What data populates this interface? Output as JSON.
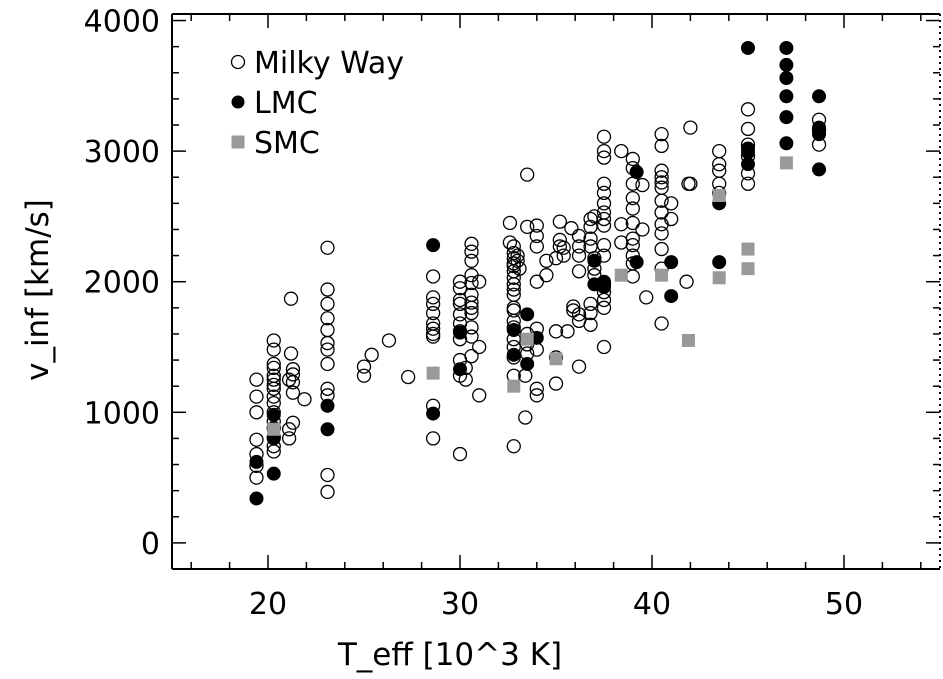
{
  "chart_data": {
    "type": "scatter",
    "title": "",
    "xlabel": "T_eff [10^3 K]",
    "ylabel": "v_inf [km/s]",
    "xlim": [
      15,
      55
    ],
    "ylim": [
      -200,
      4050
    ],
    "xticks": [
      20,
      30,
      40,
      50
    ],
    "yticks": [
      0,
      1000,
      2000,
      3000,
      4000
    ],
    "grid": false,
    "legend_position": "top-left",
    "series": [
      {
        "name": "Milky Way",
        "marker": "open-circle",
        "color": "#000000",
        "points": [
          [
            19.4,
            1250
          ],
          [
            19.4,
            1120
          ],
          [
            19.4,
            1000
          ],
          [
            19.4,
            790
          ],
          [
            19.4,
            680
          ],
          [
            19.4,
            590
          ],
          [
            19.4,
            500
          ],
          [
            20.3,
            1550
          ],
          [
            20.3,
            1480
          ],
          [
            20.3,
            1370
          ],
          [
            20.3,
            1340
          ],
          [
            20.3,
            1280
          ],
          [
            20.3,
            1250
          ],
          [
            20.3,
            1210
          ],
          [
            20.3,
            1180
          ],
          [
            20.3,
            1120
          ],
          [
            20.3,
            1070
          ],
          [
            20.3,
            1000
          ],
          [
            20.3,
            930
          ],
          [
            20.3,
            880
          ],
          [
            20.3,
            810
          ],
          [
            20.3,
            740
          ],
          [
            20.3,
            700
          ],
          [
            21.1,
            870
          ],
          [
            21.1,
            800
          ],
          [
            21.1,
            1250
          ],
          [
            21.2,
            1870
          ],
          [
            21.2,
            1450
          ],
          [
            21.3,
            1330
          ],
          [
            21.3,
            1290
          ],
          [
            21.3,
            1230
          ],
          [
            21.3,
            1150
          ],
          [
            21.3,
            920
          ],
          [
            21.9,
            1100
          ],
          [
            23.1,
            2260
          ],
          [
            23.1,
            1940
          ],
          [
            23.1,
            1830
          ],
          [
            23.1,
            1720
          ],
          [
            23.1,
            1630
          ],
          [
            23.1,
            1530
          ],
          [
            23.1,
            1480
          ],
          [
            23.1,
            1370
          ],
          [
            23.1,
            1180
          ],
          [
            23.1,
            1130
          ],
          [
            23.1,
            520
          ],
          [
            23.1,
            390
          ],
          [
            25.0,
            1350
          ],
          [
            25.0,
            1280
          ],
          [
            25.4,
            1440
          ],
          [
            26.3,
            1550
          ],
          [
            27.3,
            1270
          ],
          [
            28.6,
            2040
          ],
          [
            28.6,
            1880
          ],
          [
            28.6,
            1830
          ],
          [
            28.6,
            1760
          ],
          [
            28.6,
            1680
          ],
          [
            28.6,
            1640
          ],
          [
            28.6,
            1600
          ],
          [
            28.6,
            1580
          ],
          [
            28.6,
            1050
          ],
          [
            28.6,
            800
          ],
          [
            30.0,
            2000
          ],
          [
            30.0,
            1950
          ],
          [
            30.0,
            1860
          ],
          [
            30.0,
            1830
          ],
          [
            30.0,
            1750
          ],
          [
            30.0,
            1680
          ],
          [
            30.0,
            1620
          ],
          [
            30.0,
            1560
          ],
          [
            30.0,
            1400
          ],
          [
            30.0,
            1280
          ],
          [
            30.0,
            680
          ],
          [
            30.3,
            1340
          ],
          [
            30.3,
            1250
          ],
          [
            30.6,
            2290
          ],
          [
            30.6,
            2230
          ],
          [
            30.6,
            2160
          ],
          [
            30.6,
            2050
          ],
          [
            30.6,
            1990
          ],
          [
            30.6,
            1900
          ],
          [
            30.6,
            1840
          ],
          [
            30.6,
            1800
          ],
          [
            30.6,
            1760
          ],
          [
            30.6,
            1650
          ],
          [
            30.6,
            1580
          ],
          [
            30.6,
            1430
          ],
          [
            31.0,
            2000
          ],
          [
            31.0,
            1500
          ],
          [
            31.0,
            1130
          ],
          [
            32.6,
            2450
          ],
          [
            32.6,
            2300
          ],
          [
            32.8,
            2270
          ],
          [
            32.8,
            2220
          ],
          [
            32.8,
            2180
          ],
          [
            32.8,
            2140
          ],
          [
            32.8,
            2120
          ],
          [
            32.8,
            2080
          ],
          [
            32.8,
            2030
          ],
          [
            32.8,
            1980
          ],
          [
            32.8,
            1940
          ],
          [
            32.8,
            1900
          ],
          [
            32.8,
            1800
          ],
          [
            32.8,
            1780
          ],
          [
            32.8,
            1700
          ],
          [
            32.8,
            1650
          ],
          [
            32.8,
            1560
          ],
          [
            32.8,
            1500
          ],
          [
            32.8,
            1420
          ],
          [
            32.8,
            1280
          ],
          [
            32.8,
            740
          ],
          [
            33.0,
            2200
          ],
          [
            33.0,
            2160
          ],
          [
            33.1,
            2100
          ],
          [
            33.5,
            2820
          ],
          [
            33.5,
            2420
          ],
          [
            33.5,
            1600
          ],
          [
            33.5,
            1520
          ],
          [
            33.5,
            1450
          ],
          [
            33.4,
            1280
          ],
          [
            33.4,
            960
          ],
          [
            34.0,
            2430
          ],
          [
            34.0,
            2350
          ],
          [
            34.0,
            2270
          ],
          [
            34.0,
            2000
          ],
          [
            34.0,
            1640
          ],
          [
            34.0,
            1480
          ],
          [
            34.0,
            1180
          ],
          [
            34.0,
            1130
          ],
          [
            34.5,
            2160
          ],
          [
            34.5,
            2050
          ],
          [
            35.0,
            2180
          ],
          [
            35.0,
            1620
          ],
          [
            35.0,
            1420
          ],
          [
            35.0,
            1220
          ],
          [
            35.2,
            2460
          ],
          [
            35.2,
            2320
          ],
          [
            35.2,
            2270
          ],
          [
            35.4,
            2260
          ],
          [
            35.4,
            2200
          ],
          [
            35.6,
            1620
          ],
          [
            35.8,
            2410
          ],
          [
            35.9,
            1810
          ],
          [
            35.9,
            1780
          ],
          [
            36.2,
            1700
          ],
          [
            36.2,
            1750
          ],
          [
            36.2,
            2350
          ],
          [
            36.2,
            2270
          ],
          [
            36.2,
            2200
          ],
          [
            36.2,
            2080
          ],
          [
            36.2,
            1350
          ],
          [
            36.8,
            2480
          ],
          [
            36.8,
            2420
          ],
          [
            36.8,
            2330
          ],
          [
            36.8,
            2270
          ],
          [
            36.8,
            1830
          ],
          [
            36.8,
            1760
          ],
          [
            36.8,
            1670
          ],
          [
            37.0,
            2500
          ],
          [
            37.0,
            2180
          ],
          [
            37.0,
            2100
          ],
          [
            37.0,
            2050
          ],
          [
            37.5,
            3110
          ],
          [
            37.5,
            3000
          ],
          [
            37.5,
            2950
          ],
          [
            37.5,
            2750
          ],
          [
            37.5,
            2680
          ],
          [
            37.5,
            2600
          ],
          [
            37.5,
            2530
          ],
          [
            37.5,
            2480
          ],
          [
            37.5,
            2430
          ],
          [
            37.5,
            2280
          ],
          [
            37.5,
            2200
          ],
          [
            37.5,
            1980
          ],
          [
            37.5,
            1920
          ],
          [
            37.5,
            1860
          ],
          [
            37.5,
            1800
          ],
          [
            37.5,
            1500
          ],
          [
            38.4,
            3000
          ],
          [
            38.4,
            2440
          ],
          [
            38.4,
            2300
          ],
          [
            39.0,
            2940
          ],
          [
            39.0,
            2870
          ],
          [
            39.0,
            2750
          ],
          [
            39.0,
            2640
          ],
          [
            39.0,
            2560
          ],
          [
            39.0,
            2450
          ],
          [
            39.0,
            2330
          ],
          [
            39.0,
            2280
          ],
          [
            39.0,
            2200
          ],
          [
            39.0,
            2140
          ],
          [
            39.0,
            2040
          ],
          [
            39.7,
            1880
          ],
          [
            39.5,
            2740
          ],
          [
            39.5,
            2400
          ],
          [
            40.5,
            3130
          ],
          [
            40.5,
            3040
          ],
          [
            40.5,
            2850
          ],
          [
            40.5,
            2800
          ],
          [
            40.5,
            2760
          ],
          [
            40.5,
            2720
          ],
          [
            40.5,
            2620
          ],
          [
            40.5,
            2530
          ],
          [
            40.5,
            2440
          ],
          [
            40.5,
            2370
          ],
          [
            40.5,
            2250
          ],
          [
            40.5,
            2100
          ],
          [
            40.5,
            1680
          ],
          [
            41.0,
            2600
          ],
          [
            41.0,
            2480
          ],
          [
            41.8,
            2000
          ],
          [
            41.9,
            2750
          ],
          [
            42.0,
            3180
          ],
          [
            42.0,
            2750
          ],
          [
            43.5,
            3000
          ],
          [
            43.5,
            2900
          ],
          [
            43.5,
            2850
          ],
          [
            43.5,
            2750
          ],
          [
            43.5,
            2680
          ],
          [
            45.0,
            3320
          ],
          [
            45.0,
            3170
          ],
          [
            45.0,
            3050
          ],
          [
            45.0,
            2960
          ],
          [
            45.0,
            2830
          ],
          [
            45.0,
            2750
          ],
          [
            48.7,
            3240
          ],
          [
            48.7,
            3160
          ],
          [
            48.7,
            3050
          ]
        ]
      },
      {
        "name": "LMC",
        "marker": "filled-circle",
        "color": "#000000",
        "points": [
          [
            19.4,
            620
          ],
          [
            19.4,
            340
          ],
          [
            20.3,
            980
          ],
          [
            20.3,
            880
          ],
          [
            20.3,
            800
          ],
          [
            20.3,
            530
          ],
          [
            23.1,
            1050
          ],
          [
            23.1,
            870
          ],
          [
            28.6,
            2280
          ],
          [
            28.6,
            990
          ],
          [
            30.0,
            1610
          ],
          [
            30.0,
            1330
          ],
          [
            32.8,
            1630
          ],
          [
            32.8,
            1440
          ],
          [
            33.5,
            1750
          ],
          [
            33.5,
            1370
          ],
          [
            34.0,
            1570
          ],
          [
            37.0,
            2160
          ],
          [
            37.0,
            1980
          ],
          [
            37.5,
            2000
          ],
          [
            37.5,
            1960
          ],
          [
            39.2,
            2840
          ],
          [
            39.2,
            2150
          ],
          [
            41.0,
            2150
          ],
          [
            41.0,
            1890
          ],
          [
            43.5,
            2150
          ],
          [
            43.5,
            2600
          ],
          [
            45.0,
            3790
          ],
          [
            45.0,
            3020
          ],
          [
            45.0,
            2990
          ],
          [
            45.0,
            2900
          ],
          [
            47.0,
            3790
          ],
          [
            47.0,
            3660
          ],
          [
            47.0,
            3560
          ],
          [
            47.0,
            3420
          ],
          [
            47.0,
            3260
          ],
          [
            47.0,
            3060
          ],
          [
            48.7,
            3420
          ],
          [
            48.7,
            3180
          ],
          [
            48.7,
            3130
          ],
          [
            48.7,
            2860
          ]
        ]
      },
      {
        "name": "SMC",
        "marker": "filled-square",
        "color": "#999999",
        "points": [
          [
            20.3,
            870
          ],
          [
            28.6,
            1300
          ],
          [
            32.8,
            1200
          ],
          [
            33.5,
            1560
          ],
          [
            35.0,
            1410
          ],
          [
            38.4,
            2050
          ],
          [
            40.5,
            2050
          ],
          [
            41.9,
            1550
          ],
          [
            43.5,
            2660
          ],
          [
            43.5,
            2030
          ],
          [
            45.0,
            2250
          ],
          [
            45.0,
            2100
          ],
          [
            47.0,
            2910
          ]
        ]
      }
    ]
  }
}
